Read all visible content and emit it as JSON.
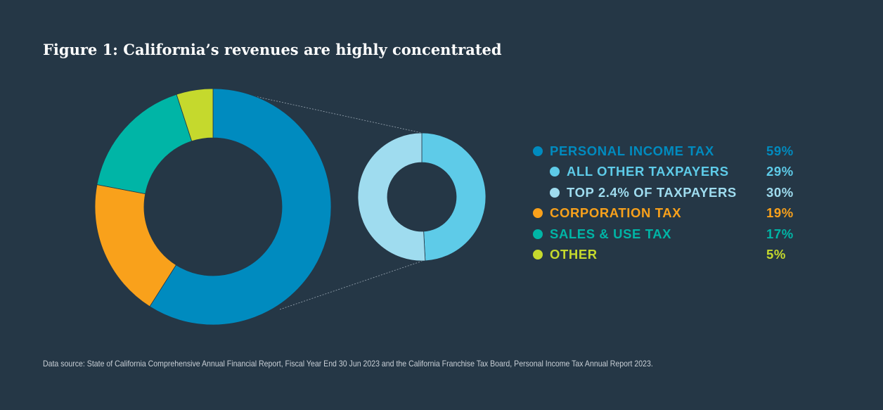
{
  "title": "Figure 1: California’s revenues are highly concentrated",
  "chart_data": {
    "type": "pie",
    "main": [
      {
        "label": "PERSONAL INCOME TAX",
        "value": 59,
        "color": "#008bbf"
      },
      {
        "label": "CORPORATION TAX",
        "value": 19,
        "color": "#f9a11b"
      },
      {
        "label": "SALES & USE TAX",
        "value": 17,
        "color": "#00b5a6"
      },
      {
        "label": "OTHER",
        "value": 5,
        "color": "#c5d92d"
      }
    ],
    "breakdown": [
      {
        "label": "ALL OTHER TAXPAYERS",
        "value": 29,
        "color": "#5ecbe8"
      },
      {
        "label": "TOP 2.4% OF TAXPAYERS",
        "value": 30,
        "color": "#9fdcef"
      }
    ]
  },
  "legend": [
    {
      "label": "PERSONAL INCOME TAX",
      "pct": "59%",
      "color": "#008bbf",
      "sub": false
    },
    {
      "label": "ALL OTHER TAXPAYERS",
      "pct": "29%",
      "color": "#5ecbe8",
      "sub": true
    },
    {
      "label": "TOP 2.4% OF TAXPAYERS",
      "pct": "30%",
      "color": "#9fdcef",
      "sub": true
    },
    {
      "label": "CORPORATION TAX",
      "pct": "19%",
      "color": "#f9a11b",
      "sub": false
    },
    {
      "label": "SALES & USE TAX",
      "pct": "17%",
      "color": "#00b5a6",
      "sub": false
    },
    {
      "label": "OTHER",
      "pct": "5%",
      "color": "#c5d92d",
      "sub": false
    }
  ],
  "source": "Data source: State of California Comprehensive Annual Financial Report, Fiscal Year End 30 Jun 2023 and the California Franchise Tax Board, Personal Income Tax Annual Report 2023."
}
